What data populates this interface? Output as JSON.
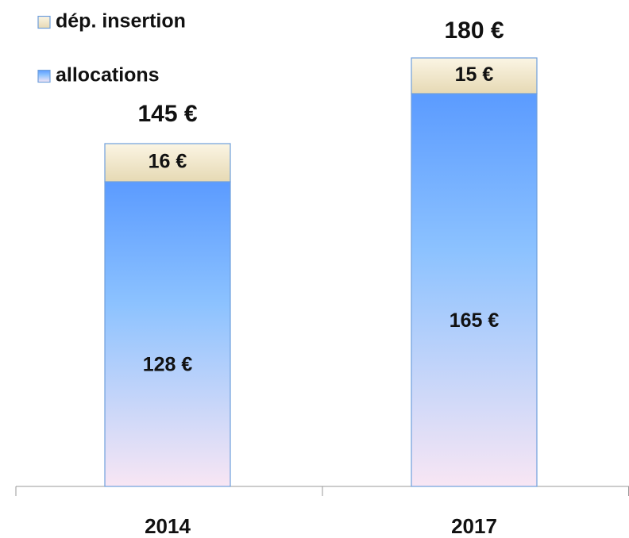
{
  "chart_data": {
    "type": "stacked-bar",
    "categories": [
      "2014",
      "2017"
    ],
    "series": [
      {
        "name": "allocations",
        "color": "#5b9bff",
        "values": [
          128,
          165
        ],
        "value_labels": [
          "128 €",
          "165 €"
        ]
      },
      {
        "name": "dép. insertion",
        "color": "#f3e9cf",
        "values": [
          16,
          15
        ],
        "value_labels": [
          "16 €",
          "15 €"
        ]
      }
    ],
    "totals": [
      145,
      180
    ],
    "total_labels": [
      "145 €",
      "180 €"
    ]
  }
}
